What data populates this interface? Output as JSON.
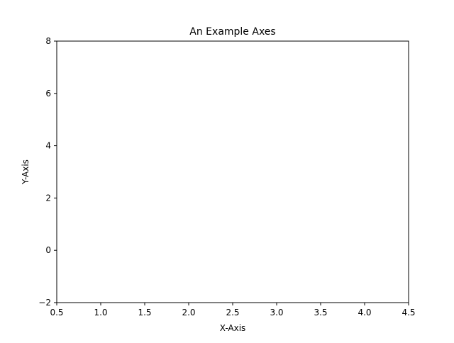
{
  "chart_data": {
    "type": "line",
    "title": "An Example Axes",
    "xlabel": "X-Axis",
    "ylabel": "Y-Axis",
    "xlim": [
      0.5,
      4.5
    ],
    "ylim": [
      -2,
      8
    ],
    "xticks": [
      0.5,
      1.0,
      1.5,
      2.0,
      2.5,
      3.0,
      3.5,
      4.0,
      4.5
    ],
    "xtick_labels": [
      "0.5",
      "1.0",
      "1.5",
      "2.0",
      "2.5",
      "3.0",
      "3.5",
      "4.0",
      "4.5"
    ],
    "yticks": [
      -2,
      0,
      2,
      4,
      6,
      8
    ],
    "ytick_labels": [
      "−2",
      "0",
      "2",
      "4",
      "6",
      "8"
    ],
    "series": [],
    "grid": false,
    "legend": "none"
  }
}
